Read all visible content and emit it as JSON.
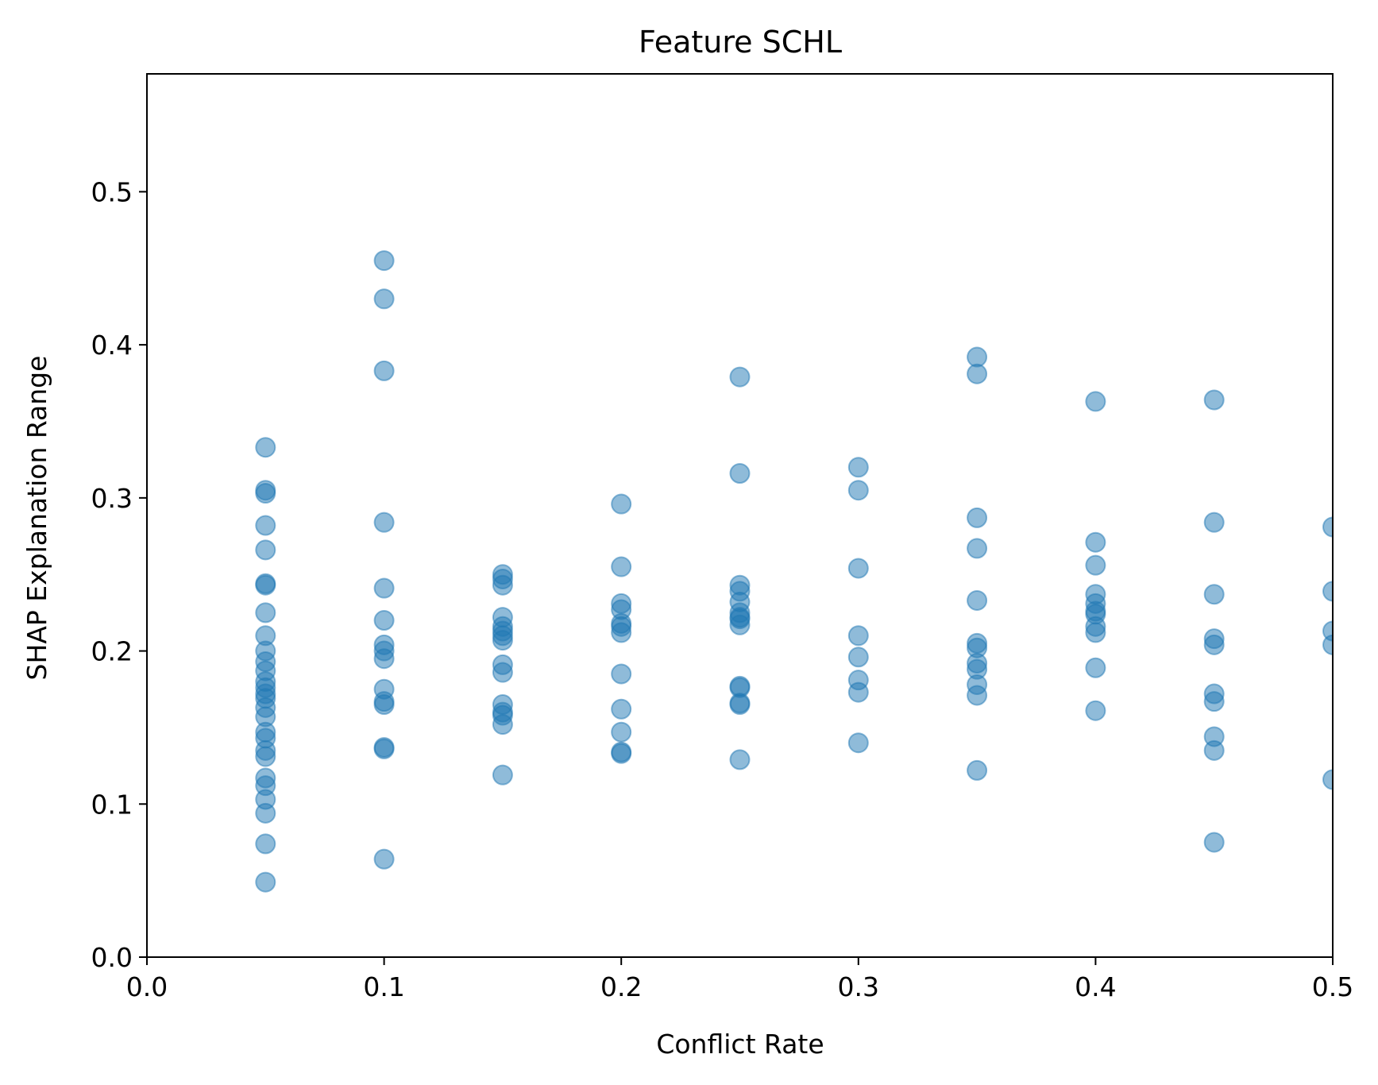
{
  "chart_data": {
    "type": "scatter",
    "title": "Feature SCHL",
    "xlabel": "Conflict Rate",
    "ylabel": "SHAP Explanation Range",
    "xlim": [
      0.0,
      0.5
    ],
    "ylim": [
      0.0,
      0.577
    ],
    "xticks": [
      0.0,
      0.1,
      0.2,
      0.3,
      0.4,
      0.5
    ],
    "xtick_labels": [
      "0.0",
      "0.1",
      "0.2",
      "0.3",
      "0.4",
      "0.5"
    ],
    "yticks": [
      0.0,
      0.1,
      0.2,
      0.3,
      0.4,
      0.5
    ],
    "ytick_labels": [
      "0.0",
      "0.1",
      "0.2",
      "0.3",
      "0.4",
      "0.5"
    ],
    "grid": false,
    "legend": "none",
    "marker_color": "#1f77b4",
    "marker_alpha": 0.5,
    "series": [
      {
        "points": [
          {
            "x": 0.05,
            "y": 0.333
          },
          {
            "x": 0.05,
            "y": 0.305
          },
          {
            "x": 0.05,
            "y": 0.303
          },
          {
            "x": 0.05,
            "y": 0.282
          },
          {
            "x": 0.05,
            "y": 0.266
          },
          {
            "x": 0.05,
            "y": 0.244
          },
          {
            "x": 0.05,
            "y": 0.243
          },
          {
            "x": 0.05,
            "y": 0.225
          },
          {
            "x": 0.05,
            "y": 0.21
          },
          {
            "x": 0.05,
            "y": 0.2
          },
          {
            "x": 0.05,
            "y": 0.193
          },
          {
            "x": 0.05,
            "y": 0.187
          },
          {
            "x": 0.05,
            "y": 0.18
          },
          {
            "x": 0.05,
            "y": 0.176
          },
          {
            "x": 0.05,
            "y": 0.172
          },
          {
            "x": 0.05,
            "y": 0.169
          },
          {
            "x": 0.05,
            "y": 0.163
          },
          {
            "x": 0.05,
            "y": 0.157
          },
          {
            "x": 0.05,
            "y": 0.147
          },
          {
            "x": 0.05,
            "y": 0.143
          },
          {
            "x": 0.05,
            "y": 0.135
          },
          {
            "x": 0.05,
            "y": 0.131
          },
          {
            "x": 0.05,
            "y": 0.117
          },
          {
            "x": 0.05,
            "y": 0.112
          },
          {
            "x": 0.05,
            "y": 0.103
          },
          {
            "x": 0.05,
            "y": 0.094
          },
          {
            "x": 0.05,
            "y": 0.074
          },
          {
            "x": 0.05,
            "y": 0.049
          },
          {
            "x": 0.1,
            "y": 0.455
          },
          {
            "x": 0.1,
            "y": 0.43
          },
          {
            "x": 0.1,
            "y": 0.383
          },
          {
            "x": 0.1,
            "y": 0.284
          },
          {
            "x": 0.1,
            "y": 0.241
          },
          {
            "x": 0.1,
            "y": 0.22
          },
          {
            "x": 0.1,
            "y": 0.204
          },
          {
            "x": 0.1,
            "y": 0.2
          },
          {
            "x": 0.1,
            "y": 0.195
          },
          {
            "x": 0.1,
            "y": 0.175
          },
          {
            "x": 0.1,
            "y": 0.167
          },
          {
            "x": 0.1,
            "y": 0.165
          },
          {
            "x": 0.1,
            "y": 0.137
          },
          {
            "x": 0.1,
            "y": 0.136
          },
          {
            "x": 0.1,
            "y": 0.064
          },
          {
            "x": 0.15,
            "y": 0.25
          },
          {
            "x": 0.15,
            "y": 0.247
          },
          {
            "x": 0.15,
            "y": 0.243
          },
          {
            "x": 0.15,
            "y": 0.222
          },
          {
            "x": 0.15,
            "y": 0.216
          },
          {
            "x": 0.15,
            "y": 0.213
          },
          {
            "x": 0.15,
            "y": 0.21
          },
          {
            "x": 0.15,
            "y": 0.207
          },
          {
            "x": 0.15,
            "y": 0.191
          },
          {
            "x": 0.15,
            "y": 0.186
          },
          {
            "x": 0.15,
            "y": 0.165
          },
          {
            "x": 0.15,
            "y": 0.16
          },
          {
            "x": 0.15,
            "y": 0.158
          },
          {
            "x": 0.15,
            "y": 0.152
          },
          {
            "x": 0.15,
            "y": 0.119
          },
          {
            "x": 0.2,
            "y": 0.296
          },
          {
            "x": 0.2,
            "y": 0.255
          },
          {
            "x": 0.2,
            "y": 0.231
          },
          {
            "x": 0.2,
            "y": 0.227
          },
          {
            "x": 0.2,
            "y": 0.218
          },
          {
            "x": 0.2,
            "y": 0.216
          },
          {
            "x": 0.2,
            "y": 0.212
          },
          {
            "x": 0.2,
            "y": 0.185
          },
          {
            "x": 0.2,
            "y": 0.162
          },
          {
            "x": 0.2,
            "y": 0.147
          },
          {
            "x": 0.2,
            "y": 0.134
          },
          {
            "x": 0.2,
            "y": 0.133
          },
          {
            "x": 0.25,
            "y": 0.379
          },
          {
            "x": 0.25,
            "y": 0.316
          },
          {
            "x": 0.25,
            "y": 0.243
          },
          {
            "x": 0.25,
            "y": 0.239
          },
          {
            "x": 0.25,
            "y": 0.232
          },
          {
            "x": 0.25,
            "y": 0.225
          },
          {
            "x": 0.25,
            "y": 0.222
          },
          {
            "x": 0.25,
            "y": 0.221
          },
          {
            "x": 0.25,
            "y": 0.217
          },
          {
            "x": 0.25,
            "y": 0.177
          },
          {
            "x": 0.25,
            "y": 0.176
          },
          {
            "x": 0.25,
            "y": 0.166
          },
          {
            "x": 0.25,
            "y": 0.165
          },
          {
            "x": 0.25,
            "y": 0.129
          },
          {
            "x": 0.3,
            "y": 0.32
          },
          {
            "x": 0.3,
            "y": 0.305
          },
          {
            "x": 0.3,
            "y": 0.254
          },
          {
            "x": 0.3,
            "y": 0.21
          },
          {
            "x": 0.3,
            "y": 0.196
          },
          {
            "x": 0.3,
            "y": 0.181
          },
          {
            "x": 0.3,
            "y": 0.173
          },
          {
            "x": 0.3,
            "y": 0.14
          },
          {
            "x": 0.35,
            "y": 0.392
          },
          {
            "x": 0.35,
            "y": 0.381
          },
          {
            "x": 0.35,
            "y": 0.287
          },
          {
            "x": 0.35,
            "y": 0.267
          },
          {
            "x": 0.35,
            "y": 0.233
          },
          {
            "x": 0.35,
            "y": 0.205
          },
          {
            "x": 0.35,
            "y": 0.202
          },
          {
            "x": 0.35,
            "y": 0.192
          },
          {
            "x": 0.35,
            "y": 0.188
          },
          {
            "x": 0.35,
            "y": 0.178
          },
          {
            "x": 0.35,
            "y": 0.171
          },
          {
            "x": 0.35,
            "y": 0.122
          },
          {
            "x": 0.4,
            "y": 0.363
          },
          {
            "x": 0.4,
            "y": 0.271
          },
          {
            "x": 0.4,
            "y": 0.256
          },
          {
            "x": 0.4,
            "y": 0.237
          },
          {
            "x": 0.4,
            "y": 0.231
          },
          {
            "x": 0.4,
            "y": 0.226
          },
          {
            "x": 0.4,
            "y": 0.224
          },
          {
            "x": 0.4,
            "y": 0.216
          },
          {
            "x": 0.4,
            "y": 0.212
          },
          {
            "x": 0.4,
            "y": 0.189
          },
          {
            "x": 0.4,
            "y": 0.161
          },
          {
            "x": 0.45,
            "y": 0.364
          },
          {
            "x": 0.45,
            "y": 0.284
          },
          {
            "x": 0.45,
            "y": 0.237
          },
          {
            "x": 0.45,
            "y": 0.208
          },
          {
            "x": 0.45,
            "y": 0.204
          },
          {
            "x": 0.45,
            "y": 0.172
          },
          {
            "x": 0.45,
            "y": 0.167
          },
          {
            "x": 0.45,
            "y": 0.144
          },
          {
            "x": 0.45,
            "y": 0.135
          },
          {
            "x": 0.45,
            "y": 0.075
          },
          {
            "x": 0.5,
            "y": 0.281
          },
          {
            "x": 0.5,
            "y": 0.239
          },
          {
            "x": 0.5,
            "y": 0.213
          },
          {
            "x": 0.5,
            "y": 0.204
          },
          {
            "x": 0.5,
            "y": 0.116
          }
        ]
      }
    ]
  }
}
